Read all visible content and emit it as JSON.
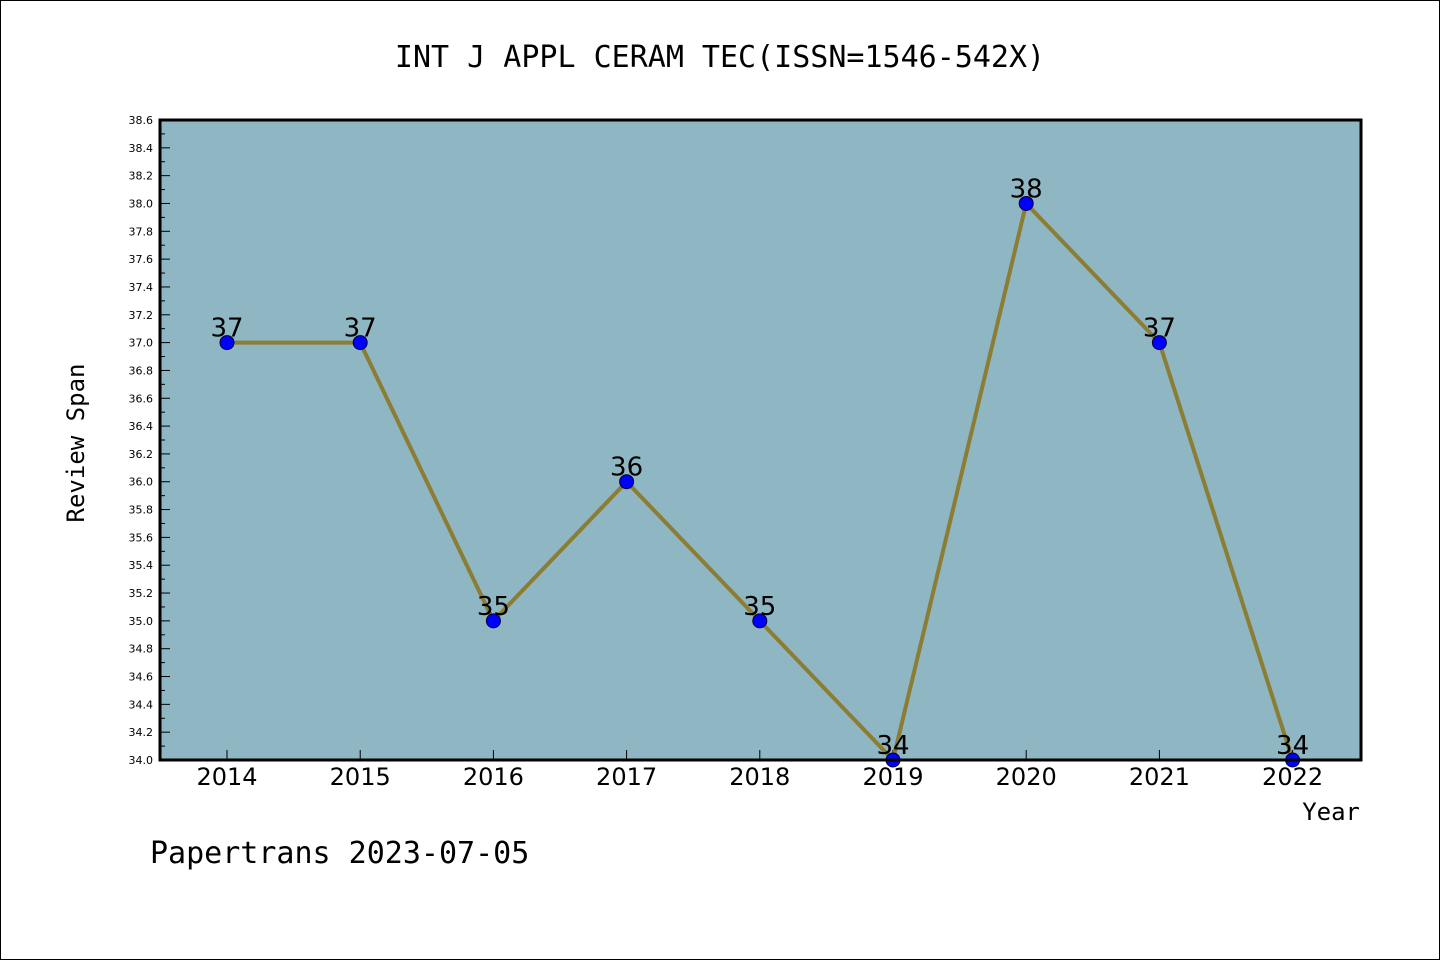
{
  "chart_data": {
    "type": "line",
    "title": "INT J APPL CERAM TEC(ISSN=1546-542X)",
    "xlabel": "Year",
    "ylabel": "Review Span",
    "categories": [
      "2014",
      "2015",
      "2016",
      "2017",
      "2018",
      "2019",
      "2020",
      "2021",
      "2022"
    ],
    "series": [
      {
        "values": [
          37,
          37,
          35,
          36,
          35,
          34,
          38,
          37,
          34
        ]
      }
    ],
    "data_labels": [
      "37",
      "37",
      "35",
      "36",
      "35",
      "34",
      "38",
      "37",
      "34"
    ],
    "ylim": [
      34.0,
      38.6
    ],
    "yticks": [
      "34.0",
      "34.2",
      "34.4",
      "34.6",
      "34.8",
      "35.0",
      "35.2",
      "35.4",
      "35.6",
      "35.8",
      "36.0",
      "36.2",
      "36.4",
      "36.6",
      "36.8",
      "37.0",
      "37.2",
      "37.4",
      "37.6",
      "37.8",
      "38.0",
      "38.2",
      "38.4",
      "38.6"
    ],
    "grid": false,
    "colors": {
      "plot_background": "#8fb6c3",
      "line": "#8b7d33",
      "marker": "#0000ff",
      "axis": "#000000"
    }
  },
  "footer": "Papertrans 2023-07-05"
}
